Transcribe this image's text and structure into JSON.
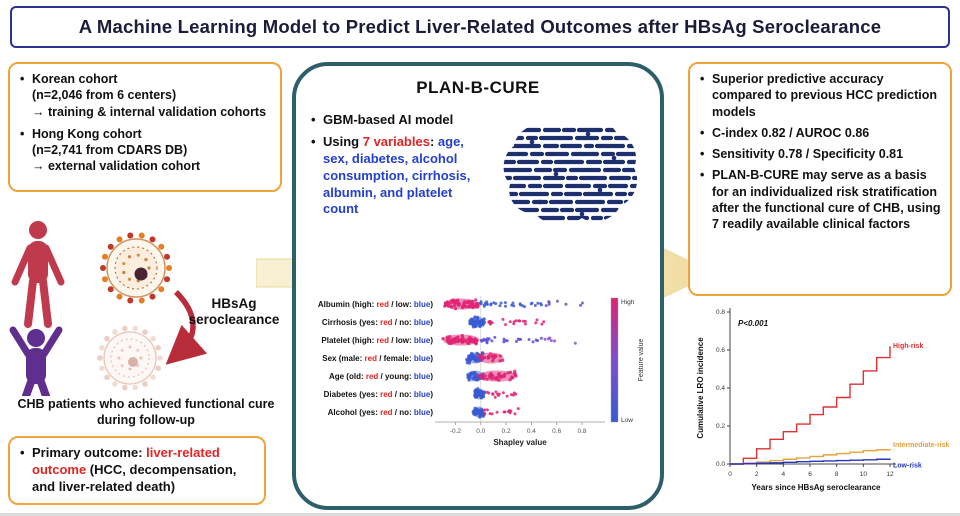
{
  "title": "A Machine Learning Model to Predict Liver-Related Outcomes after HBsAg Seroclearance",
  "left": {
    "cohorts": [
      {
        "name": "Korean cohort",
        "detail": "(n=2,046 from 6 centers)",
        "note": "→ training & internal validation cohorts"
      },
      {
        "name": "Hong Kong cohort",
        "detail": "(n=2,741 from CDARS DB)",
        "note": "→ external validation cohort"
      }
    ],
    "hbsag_arrow_label": {
      "line1": "HBsAg",
      "line2": "seroclearance"
    },
    "caption": "CHB patients who achieved functional cure during follow-up",
    "outcome": {
      "prefix": "Primary outcome: ",
      "highlight": "liver-related outcome",
      "suffix": " (HCC, decompensation, and liver-related death)"
    }
  },
  "center": {
    "title": "PLAN-B-CURE",
    "bullet1": "GBM-based AI model",
    "bullet2": {
      "prefix": "Using ",
      "highlight": "7 variables",
      "sep": ": ",
      "vars": "age, sex, diabetes, alcohol consumption, cirrhosis, albumin, and platelet count"
    }
  },
  "right": {
    "bullets": [
      "Superior predictive accuracy compared to previous HCC prediction models",
      "C-index 0.82 / AUROC 0.86",
      "Sensitivity 0.78 / Specificity 0.81",
      "PLAN-B-CURE may serve as a basis for an individualized risk stratification after the functional cure of CHB, using 7 readily available clinical factors"
    ]
  },
  "colors": {
    "accent_orange": "#f0a43c",
    "panel_teal": "#2d5f6b",
    "title_blue": "#2d3192",
    "highlight_red": "#e02424",
    "highlight_blue": "#2440cc"
  },
  "chart_data": [
    {
      "type": "beeswarm",
      "name": "SHAP summary plot",
      "xlabel": "Shapley value",
      "x_ticks": [
        -0.2,
        0,
        0.2,
        0.4,
        0.6,
        0.8
      ],
      "xlim": [
        -0.33,
        0.95
      ],
      "label_red": "#e02424",
      "label_blue": "#2440cc",
      "colorbar": {
        "label": "Feature value",
        "high": "High",
        "low": "Low",
        "top_color": "#df2373",
        "mid_color": "#7a4fd0",
        "bottom_color": "#3a5bd0"
      },
      "features": [
        {
          "label_parts": [
            "Albumin (high: ",
            "red",
            " / low: ",
            "blue",
            ")"
          ],
          "clusters": [
            {
              "from": -0.29,
              "to": -0.02,
              "n": 55,
              "color": "#df2373",
              "dense": true
            },
            {
              "from": -0.02,
              "to": 0.5,
              "n": 30,
              "color": "#3a5bd0",
              "dense": false
            },
            {
              "from": 0.5,
              "to": 0.9,
              "n": 8,
              "color": "#6a4fd0",
              "dense": false
            }
          ]
        },
        {
          "label_parts": [
            "Cirrhosis (yes: ",
            "red",
            " / no: ",
            "blue",
            ")"
          ],
          "clusters": [
            {
              "from": -0.09,
              "to": 0.03,
              "n": 50,
              "color": "#3a5bd0",
              "dense": true
            },
            {
              "from": 0.06,
              "to": 0.5,
              "n": 22,
              "color": "#df2373",
              "dense": false
            }
          ]
        },
        {
          "label_parts": [
            "Platelet (high: ",
            "red",
            " / low: ",
            "blue",
            ")"
          ],
          "clusters": [
            {
              "from": -0.3,
              "to": -0.01,
              "n": 55,
              "color": "#df2373",
              "dense": true
            },
            {
              "from": 0.0,
              "to": 0.5,
              "n": 26,
              "color": "#5b50d6",
              "dense": false
            },
            {
              "from": 0.5,
              "to": 0.75,
              "n": 6,
              "color": "#8a4fd0",
              "dense": false
            }
          ]
        },
        {
          "label_parts": [
            "Sex (male: ",
            "red",
            " / female: ",
            "blue",
            ")"
          ],
          "clusters": [
            {
              "from": -0.11,
              "to": 0.02,
              "n": 45,
              "color": "#3a5bd0",
              "dense": true
            },
            {
              "from": -0.02,
              "to": 0.18,
              "n": 22,
              "color": "#df2373",
              "dense": true
            }
          ]
        },
        {
          "label_parts": [
            "Age (old: ",
            "red",
            " / young: ",
            "blue",
            ")"
          ],
          "clusters": [
            {
              "from": -0.11,
              "to": 0.02,
              "n": 30,
              "color": "#3a5bd0",
              "dense": true
            },
            {
              "from": -0.02,
              "to": 0.28,
              "n": 35,
              "color": "#df2373",
              "dense": true
            }
          ]
        },
        {
          "label_parts": [
            "Diabetes (yes: ",
            "red",
            " / no: ",
            "blue",
            ")"
          ],
          "clusters": [
            {
              "from": -0.05,
              "to": 0.03,
              "n": 45,
              "color": "#3a5bd0",
              "dense": true
            },
            {
              "from": 0.05,
              "to": 0.28,
              "n": 15,
              "color": "#df2373",
              "dense": false
            }
          ]
        },
        {
          "label_parts": [
            "Alcohol (yes: ",
            "red",
            " / no: ",
            "blue",
            ")"
          ],
          "clusters": [
            {
              "from": -0.06,
              "to": 0.03,
              "n": 40,
              "color": "#3a5bd0",
              "dense": true
            },
            {
              "from": 0.03,
              "to": 0.3,
              "n": 14,
              "color": "#df2373",
              "dense": false
            }
          ]
        }
      ]
    },
    {
      "type": "line",
      "name": "Cumulative LRO incidence by risk group",
      "p_value_label": "P<0.001",
      "xlabel": "Years since HBsAg seroclearance",
      "ylabel": "Cumulative LRO incidence",
      "x_ticks": [
        0,
        2,
        4,
        6,
        8,
        10,
        12
      ],
      "y_ticks": [
        0,
        0.2,
        0.4,
        0.6,
        0.8
      ],
      "xlim": [
        0,
        12
      ],
      "ylim": [
        0,
        0.8
      ],
      "series": [
        {
          "name": "High-risk",
          "color": "#e03030",
          "label_dy": 0,
          "x": [
            0,
            1,
            2,
            3,
            4,
            5,
            6,
            7,
            8,
            9,
            10,
            11,
            12
          ],
          "y": [
            0,
            0.03,
            0.08,
            0.13,
            0.17,
            0.21,
            0.26,
            0.3,
            0.35,
            0.42,
            0.49,
            0.56,
            0.62
          ]
        },
        {
          "name": "Intermediate-risk",
          "color": "#e8a33d",
          "label_dy": -4,
          "x": [
            0,
            1,
            2,
            3,
            4,
            5,
            6,
            7,
            8,
            9,
            10,
            11,
            12
          ],
          "y": [
            0,
            0.004,
            0.01,
            0.018,
            0.025,
            0.032,
            0.04,
            0.048,
            0.055,
            0.062,
            0.07,
            0.075,
            0.08
          ]
        },
        {
          "name": "Low-risk",
          "color": "#2337c0",
          "label_dy": 7,
          "x": [
            0,
            1,
            2,
            3,
            4,
            5,
            6,
            7,
            8,
            9,
            10,
            11,
            12
          ],
          "y": [
            0,
            0.002,
            0.004,
            0.006,
            0.009,
            0.012,
            0.014,
            0.016,
            0.018,
            0.02,
            0.022,
            0.025,
            0.028
          ]
        }
      ]
    }
  ]
}
